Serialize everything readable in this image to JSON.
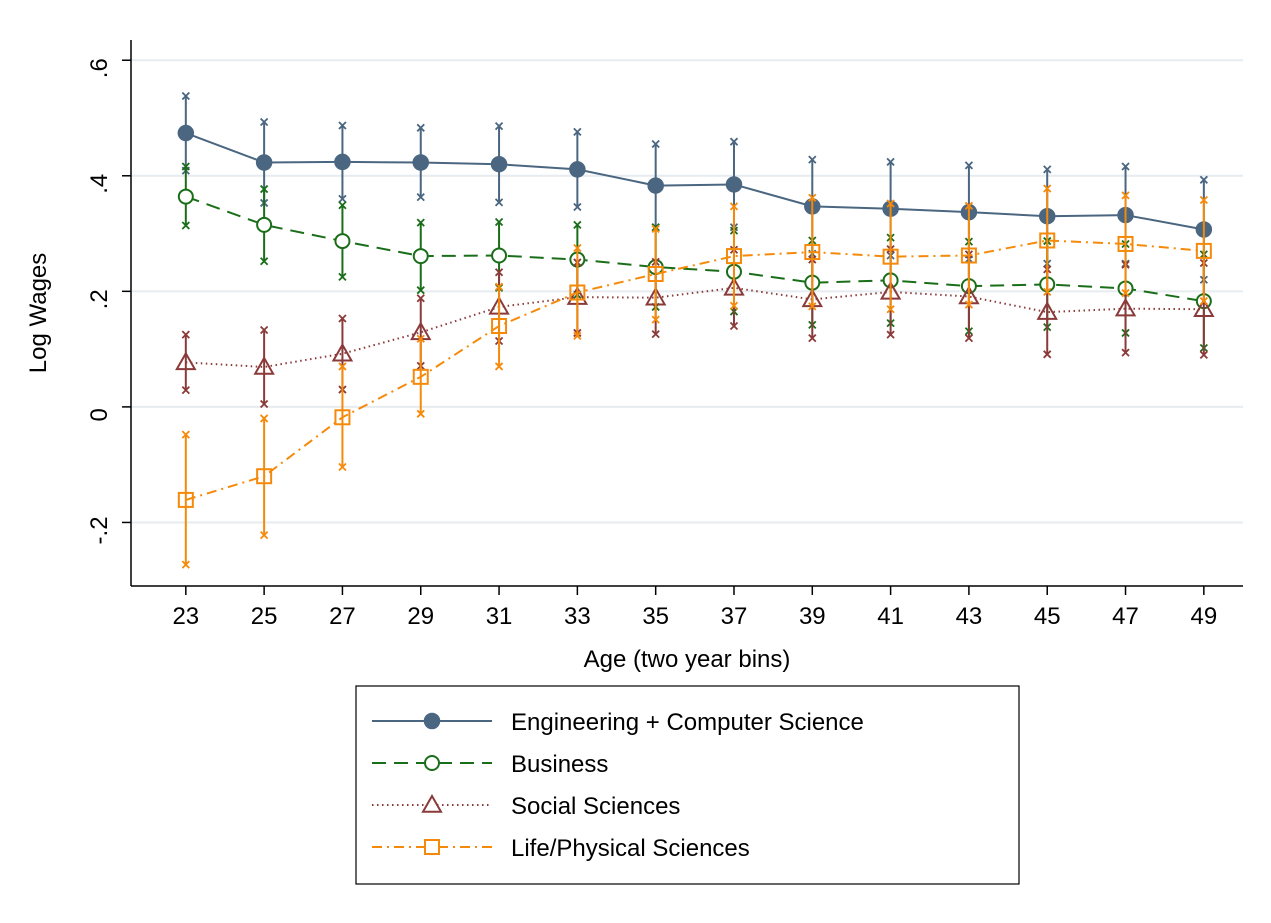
{
  "chart_data": {
    "type": "line",
    "title": "",
    "xlabel": "Age (two year bins)",
    "ylabel": "Log Wages",
    "x": [
      23,
      25,
      27,
      29,
      31,
      33,
      35,
      37,
      39,
      41,
      43,
      45,
      47,
      49
    ],
    "x_ticks": [
      "23",
      "25",
      "27",
      "29",
      "31",
      "33",
      "35",
      "37",
      "39",
      "41",
      "43",
      "45",
      "47",
      "49"
    ],
    "y_ticks": [
      {
        "value": -0.2,
        "label": "-.2"
      },
      {
        "value": 0,
        "label": "0"
      },
      {
        "value": 0.2,
        "label": ".2"
      },
      {
        "value": 0.4,
        "label": ".4"
      },
      {
        "value": 0.6,
        "label": ".6"
      }
    ],
    "xlim": [
      21.6,
      50.0
    ],
    "ylim": [
      -0.31,
      0.635
    ],
    "grid": "horizontal",
    "legend_position": "bottom",
    "series": [
      {
        "name": "Engineering + Computer Science",
        "color": "#4a6680",
        "line_style": "solid",
        "marker": "filled-circle",
        "values": [
          0.474,
          0.423,
          0.424,
          0.423,
          0.42,
          0.411,
          0.383,
          0.385,
          0.347,
          0.343,
          0.337,
          0.33,
          0.332,
          0.307
        ],
        "lower": [
          0.409,
          0.353,
          0.36,
          0.363,
          0.354,
          0.346,
          0.311,
          0.311,
          0.265,
          0.262,
          0.256,
          0.248,
          0.248,
          0.22
        ],
        "upper": [
          0.538,
          0.493,
          0.487,
          0.483,
          0.486,
          0.476,
          0.455,
          0.459,
          0.428,
          0.424,
          0.418,
          0.411,
          0.416,
          0.393
        ]
      },
      {
        "name": "Business",
        "color": "#1a6e1a",
        "line_style": "dashed",
        "marker": "hollow-circle",
        "values": [
          0.364,
          0.315,
          0.287,
          0.261,
          0.262,
          0.255,
          0.242,
          0.234,
          0.215,
          0.219,
          0.209,
          0.212,
          0.205,
          0.183
        ],
        "lower": [
          0.314,
          0.252,
          0.225,
          0.202,
          0.206,
          0.194,
          0.173,
          0.165,
          0.142,
          0.145,
          0.131,
          0.138,
          0.128,
          0.102
        ],
        "upper": [
          0.416,
          0.377,
          0.349,
          0.319,
          0.32,
          0.315,
          0.311,
          0.305,
          0.288,
          0.293,
          0.286,
          0.287,
          0.282,
          0.264
        ]
      },
      {
        "name": "Social Sciences",
        "color": "#8b3a3a",
        "line_style": "dotted",
        "marker": "hollow-triangle",
        "values": [
          0.077,
          0.069,
          0.092,
          0.129,
          0.173,
          0.19,
          0.189,
          0.206,
          0.186,
          0.199,
          0.191,
          0.164,
          0.17,
          0.169
        ],
        "lower": [
          0.029,
          0.005,
          0.03,
          0.071,
          0.114,
          0.128,
          0.126,
          0.14,
          0.119,
          0.125,
          0.119,
          0.091,
          0.094,
          0.09
        ],
        "upper": [
          0.125,
          0.133,
          0.153,
          0.188,
          0.233,
          0.25,
          0.251,
          0.272,
          0.255,
          0.273,
          0.264,
          0.238,
          0.246,
          0.249
        ]
      },
      {
        "name": "Life/Physical Sciences",
        "color": "#f58a0a",
        "line_style": "dash-dot",
        "marker": "hollow-square",
        "values": [
          -0.161,
          -0.12,
          -0.018,
          0.052,
          0.14,
          0.198,
          0.23,
          0.261,
          0.268,
          0.26,
          0.262,
          0.288,
          0.282,
          0.27
        ],
        "lower": [
          -0.273,
          -0.222,
          -0.104,
          -0.012,
          0.07,
          0.123,
          0.151,
          0.175,
          0.174,
          0.169,
          0.177,
          0.199,
          0.197,
          0.183
        ],
        "upper": [
          -0.048,
          -0.02,
          0.07,
          0.118,
          0.208,
          0.275,
          0.308,
          0.347,
          0.362,
          0.352,
          0.348,
          0.378,
          0.366,
          0.358
        ]
      }
    ]
  }
}
